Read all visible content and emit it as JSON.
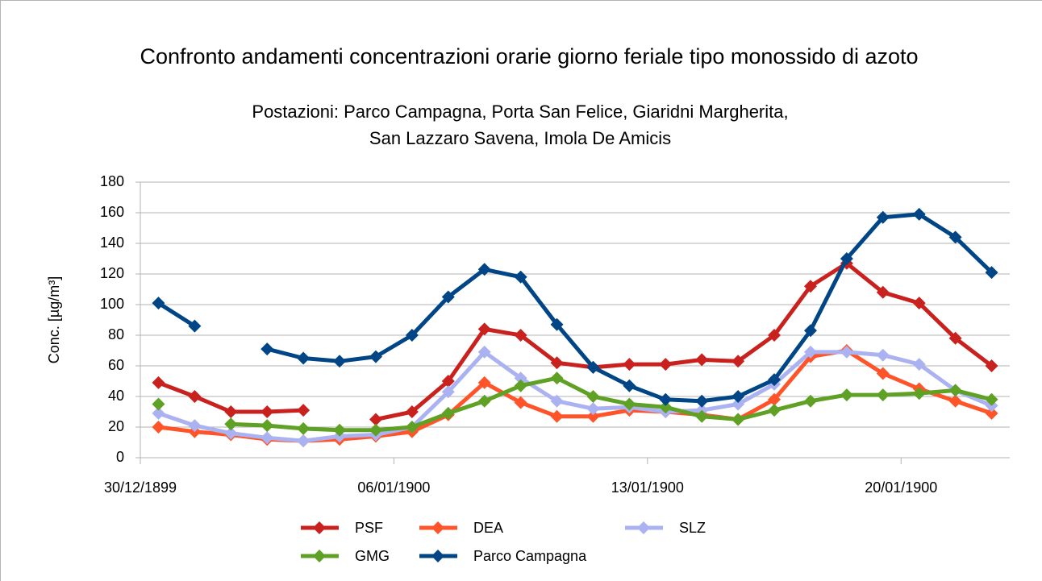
{
  "chart_data": {
    "type": "line",
    "title": "Confronto andamenti concentrazioni orarie giorno feriale tipo monossido di azoto",
    "subtitle": [
      "Postazioni: Parco Campagna, Porta San Felice, Giaridni Margherita,",
      "San Lazzaro Savena, Imola De Amicis"
    ],
    "y_label": "Conc. [µg/m³]",
    "x": [
      0,
      1,
      2,
      3,
      4,
      5,
      6,
      7,
      8,
      9,
      10,
      11,
      12,
      13,
      14,
      15,
      16,
      17,
      18,
      19,
      20,
      21,
      22,
      23
    ],
    "xlim": [
      -0.5,
      23.5
    ],
    "xticks": [
      {
        "value": -0.5,
        "label": "30/12/1899"
      },
      {
        "value": 6.5,
        "label": "06/01/1900"
      },
      {
        "value": 13.5,
        "label": "13/01/1900"
      },
      {
        "value": 20.5,
        "label": "20/01/1900"
      }
    ],
    "ylim": [
      0,
      180
    ],
    "yticks": [
      0,
      20,
      40,
      60,
      80,
      100,
      120,
      140,
      160,
      180
    ],
    "grid": true,
    "legend": "bottom",
    "series": [
      {
        "name": "PSF",
        "color": "#c9211e",
        "values": [
          49,
          40,
          30,
          30,
          31,
          null,
          25,
          30,
          50,
          84,
          80,
          62,
          59,
          61,
          61,
          64,
          63,
          80,
          112,
          127,
          108,
          101,
          78,
          60
        ]
      },
      {
        "name": "DEA",
        "color": "#ff5429",
        "values": [
          20,
          17,
          15,
          12,
          11,
          12,
          14,
          17,
          28,
          49,
          36,
          27,
          27,
          31,
          30,
          28,
          25,
          38,
          66,
          70,
          55,
          45,
          37,
          29
        ]
      },
      {
        "name": "SLZ",
        "color": "#aab2f2",
        "values": [
          29,
          21,
          16,
          13,
          11,
          14,
          15,
          20,
          43,
          69,
          52,
          37,
          32,
          33,
          30,
          31,
          35,
          48,
          69,
          69,
          67,
          61,
          44,
          34
        ]
      },
      {
        "name": "GMG",
        "color": "#5ea124",
        "values": [
          35,
          null,
          22,
          21,
          19,
          18,
          18,
          20,
          29,
          37,
          47,
          52,
          40,
          35,
          33,
          27,
          25,
          31,
          37,
          41,
          41,
          42,
          44,
          38
        ]
      },
      {
        "name": "Parco Campagna",
        "color": "#004586",
        "values": [
          101,
          86,
          null,
          71,
          65,
          63,
          66,
          80,
          105,
          123,
          118,
          87,
          59,
          47,
          38,
          37,
          40,
          51,
          83,
          130,
          157,
          159,
          144,
          121
        ]
      }
    ]
  }
}
